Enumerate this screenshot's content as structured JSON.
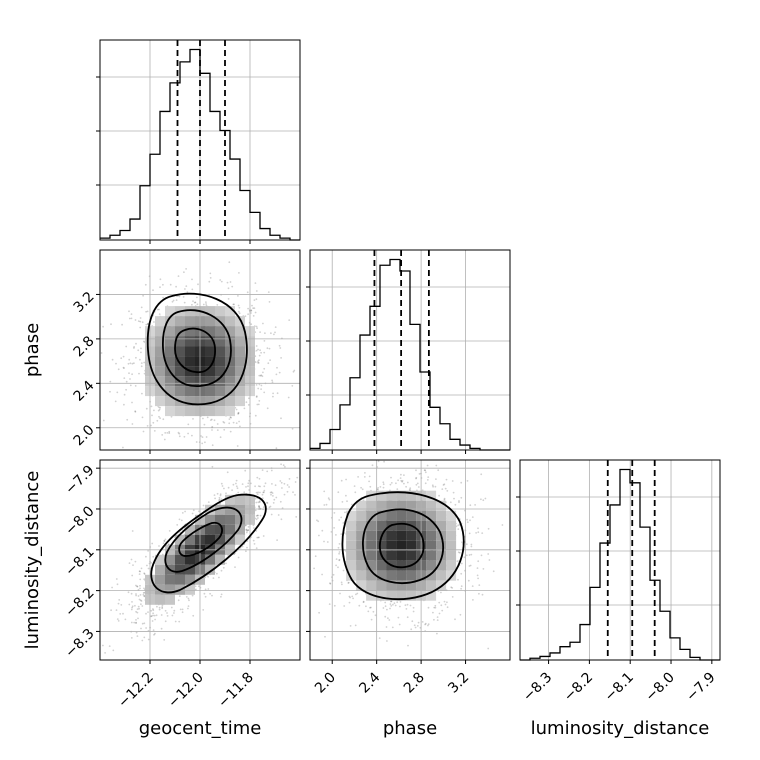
{
  "chart_data": {
    "type": "corner",
    "parameters": [
      "geocent_time",
      "phase",
      "luminosity_distance"
    ],
    "axis_labels": {
      "geocent_time": "geocent_time",
      "phase": "phase",
      "luminosity_distance": "luminosity_distance"
    },
    "ranges": {
      "geocent_time": [
        -12.4,
        -11.6
      ],
      "phase": [
        1.8,
        3.6
      ],
      "luminosity_distance": [
        -8.37,
        -7.88
      ]
    },
    "ticks": {
      "geocent_time": [
        -12.2,
        -12.0,
        -11.8
      ],
      "phase": [
        2.0,
        2.4,
        2.8,
        3.2
      ],
      "luminosity_distance": [
        -8.3,
        -8.2,
        -8.1,
        -8.0,
        -7.9
      ]
    },
    "tick_labels": {
      "geocent_time": [
        "−12.2",
        "−12.0",
        "−11.8"
      ],
      "phase": [
        "2.0",
        "2.4",
        "2.8",
        "3.2"
      ],
      "luminosity_distance": [
        "−8.3",
        "−8.2",
        "−8.1",
        "−8.0",
        "−7.9"
      ]
    },
    "quantiles": {
      "geocent_time": [
        -12.09,
        -12.0,
        -11.9
      ],
      "phase": [
        2.38,
        2.62,
        2.87
      ],
      "luminosity_distance": [
        -8.155,
        -8.095,
        -8.04
      ]
    },
    "histograms": {
      "geocent_time": {
        "edges": [
          -12.4,
          -12.36,
          -12.32,
          -12.28,
          -12.24,
          -12.2,
          -12.16,
          -12.12,
          -12.08,
          -12.04,
          -12.0,
          -11.96,
          -11.92,
          -11.88,
          -11.84,
          -11.8,
          -11.76,
          -11.72,
          -11.68,
          -11.64,
          -11.6
        ],
        "counts": [
          2,
          5,
          10,
          22,
          57,
          90,
          135,
          165,
          187,
          200,
          175,
          135,
          115,
          85,
          52,
          29,
          12,
          5,
          2,
          0
        ]
      },
      "phase": {
        "edges": [
          1.8,
          1.89,
          1.98,
          2.07,
          2.16,
          2.25,
          2.34,
          2.43,
          2.52,
          2.61,
          2.7,
          2.79,
          2.88,
          2.97,
          3.06,
          3.15,
          3.24,
          3.33,
          3.42,
          3.51,
          3.6
        ],
        "counts": [
          2,
          8,
          25,
          55,
          88,
          140,
          175,
          225,
          232,
          218,
          153,
          95,
          52,
          32,
          13,
          6,
          2,
          0,
          0,
          0
        ]
      },
      "luminosity_distance": {
        "edges": [
          -8.37,
          -8.3455,
          -8.321,
          -8.2965,
          -8.272,
          -8.2475,
          -8.223,
          -8.1985,
          -8.174,
          -8.1495,
          -8.125,
          -8.1005,
          -8.076,
          -8.0515,
          -8.027,
          -8.0025,
          -7.978,
          -7.9535,
          -7.929,
          -7.9045,
          -7.88
        ],
        "counts": [
          0,
          2,
          4,
          8,
          15,
          20,
          40,
          82,
          132,
          175,
          215,
          200,
          150,
          90,
          55,
          25,
          12,
          3,
          0,
          0
        ]
      }
    },
    "scatter_centers": {
      "phase_vs_geocent_time": {
        "x": -12.0,
        "y": 2.6
      },
      "luminosity_distance_vs_geocent_time": {
        "x": -12.0,
        "y": -8.1
      },
      "luminosity_distance_vs_phase": {
        "x": 2.62,
        "y": -8.09
      }
    },
    "grid": true
  }
}
